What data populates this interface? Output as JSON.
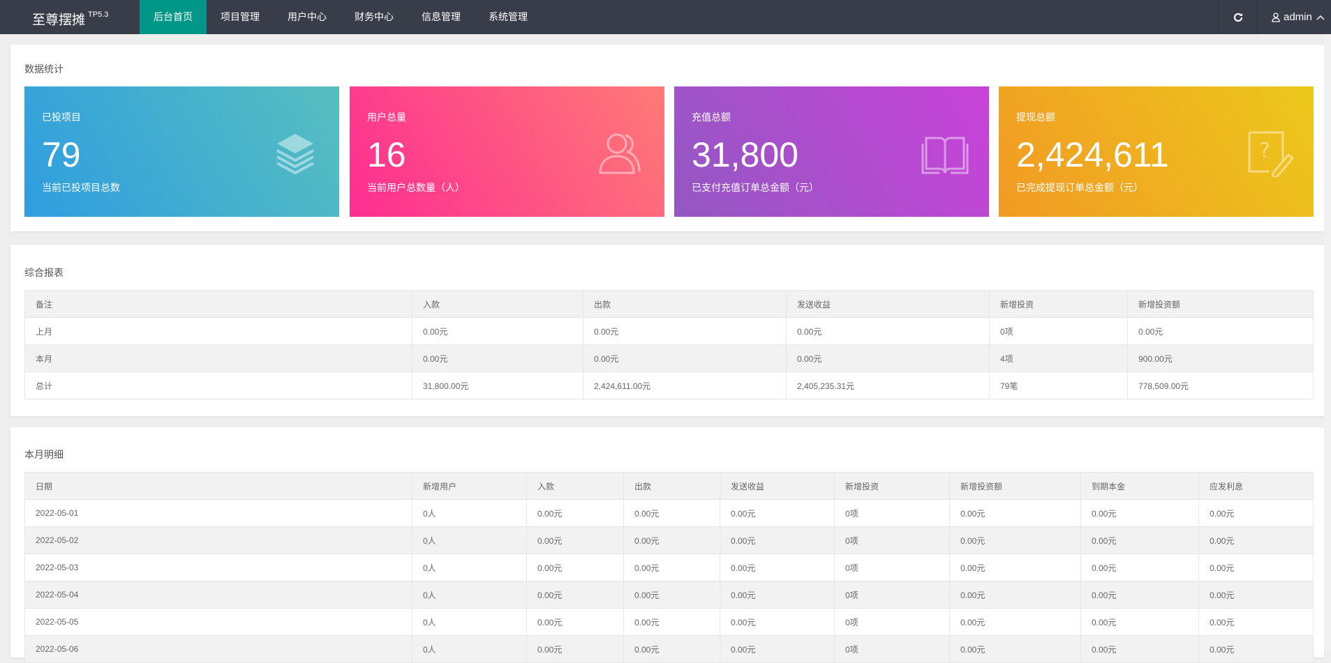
{
  "nav": {
    "logo": "至尊摆摊",
    "version": "TP5.3",
    "tabs": [
      "后台首页",
      "项目管理",
      "用户中心",
      "财务中心",
      "信息管理",
      "系统管理"
    ],
    "active": 0,
    "refresh_icon": "refresh-icon",
    "user": "admin",
    "accent": "#009688",
    "bg": "#393d49"
  },
  "stats": {
    "title": "数据统计",
    "cards": [
      {
        "label": "已投项目",
        "value": "79",
        "sub": "当前已投项目总数",
        "icon": "layers-icon",
        "gradient": [
          "#2f9de0",
          "#57bfbf"
        ]
      },
      {
        "label": "用户总量",
        "value": "16",
        "sub": "当前用户总数量（人）",
        "icon": "users-icon",
        "gradient": [
          "#fe2d92",
          "#ff7a76"
        ]
      },
      {
        "label": "充值总额",
        "value": "31,800",
        "sub": "已支付充值订单总金额（元）",
        "icon": "book-icon",
        "gradient": [
          "#9358c2",
          "#c943d9"
        ]
      },
      {
        "label": "提现总额",
        "value": "2,424,611",
        "sub": "已完成提现订单总金额（元）",
        "icon": "note-edit-icon",
        "gradient": [
          "#f29a24",
          "#ecc81b"
        ]
      }
    ]
  },
  "report": {
    "title": "综合报表",
    "headers": [
      "备注",
      "入款",
      "出款",
      "发送收益",
      "新增投资",
      "新增投资额"
    ],
    "rows": [
      [
        "上月",
        "0.00元",
        "0.00元",
        "0.00元",
        "0项",
        "0.00元"
      ],
      [
        "本月",
        "0.00元",
        "0.00元",
        "0.00元",
        "4项",
        "900.00元"
      ],
      [
        "总计",
        "31,800.00元",
        "2,424,611.00元",
        "2,405,235.31元",
        "79笔",
        "778,509.00元"
      ]
    ]
  },
  "detail": {
    "title": "本月明细",
    "headers": [
      "日期",
      "新增用户",
      "入款",
      "出款",
      "发送收益",
      "新增投资",
      "新增投资额",
      "到期本金",
      "应发利息"
    ],
    "rows": [
      [
        "2022-05-01",
        "0人",
        "0.00元",
        "0.00元",
        "0.00元",
        "0项",
        "0.00元",
        "0.00元",
        "0.00元"
      ],
      [
        "2022-05-02",
        "0人",
        "0.00元",
        "0.00元",
        "0.00元",
        "0项",
        "0.00元",
        "0.00元",
        "0.00元"
      ],
      [
        "2022-05-03",
        "0人",
        "0.00元",
        "0.00元",
        "0.00元",
        "0项",
        "0.00元",
        "0.00元",
        "0.00元"
      ],
      [
        "2022-05-04",
        "0人",
        "0.00元",
        "0.00元",
        "0.00元",
        "0项",
        "0.00元",
        "0.00元",
        "0.00元"
      ],
      [
        "2022-05-05",
        "0人",
        "0.00元",
        "0.00元",
        "0.00元",
        "0项",
        "0.00元",
        "0.00元",
        "0.00元"
      ],
      [
        "2022-05-06",
        "0人",
        "0.00元",
        "0.00元",
        "0.00元",
        "0项",
        "0.00元",
        "0.00元",
        "0.00元"
      ]
    ]
  }
}
